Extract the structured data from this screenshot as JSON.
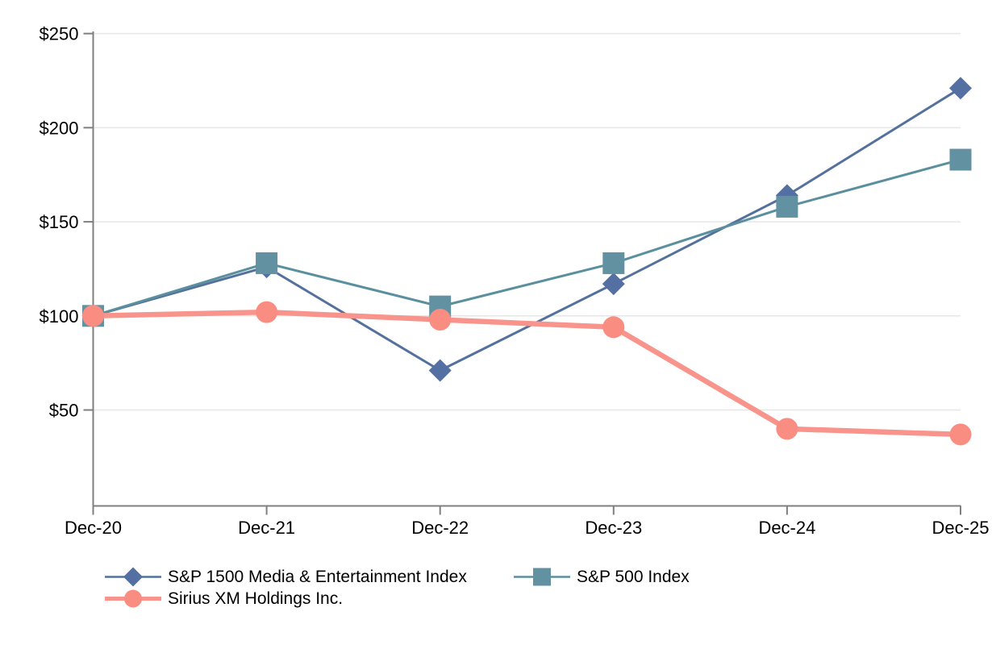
{
  "chart_data": {
    "type": "line",
    "title": "",
    "xlabel": "",
    "ylabel": "",
    "categories": [
      "Dec-20",
      "Dec-21",
      "Dec-22",
      "Dec-23",
      "Dec-24",
      "Dec-25"
    ],
    "series": [
      {
        "name": "S&P 1500 Media & Entertainment Index",
        "marker": "diamond",
        "marker_color": "#5470A2",
        "line_color": "#54719E",
        "line_width": 3,
        "values": [
          100,
          126,
          71,
          117,
          164,
          221
        ]
      },
      {
        "name": "S&P 500 Index",
        "marker": "square",
        "marker_color": "#6291A2",
        "line_color": "#5A8F9E",
        "line_width": 3,
        "values": [
          100,
          128,
          105,
          128,
          158,
          183
        ]
      },
      {
        "name": "Sirius XM Holdings Inc.",
        "marker": "circle",
        "marker_color": "#F98D82",
        "line_color": "#F8948B",
        "line_width": 6.5,
        "values": [
          100,
          102,
          98,
          94,
          40,
          37
        ]
      }
    ],
    "y_axis": {
      "tick_labels": [
        "$250",
        "$200",
        "$150",
        "$100",
        "$50"
      ],
      "tick_values": [
        250,
        200,
        150,
        100,
        50
      ],
      "currency_prefix": "$"
    },
    "grid": true,
    "legend_position": "bottom-left",
    "style": {
      "axis_color": "#7F7F7F",
      "grid_color": "#E6E6E6",
      "text_color": "#000000",
      "background": "#FFFFFF"
    }
  }
}
